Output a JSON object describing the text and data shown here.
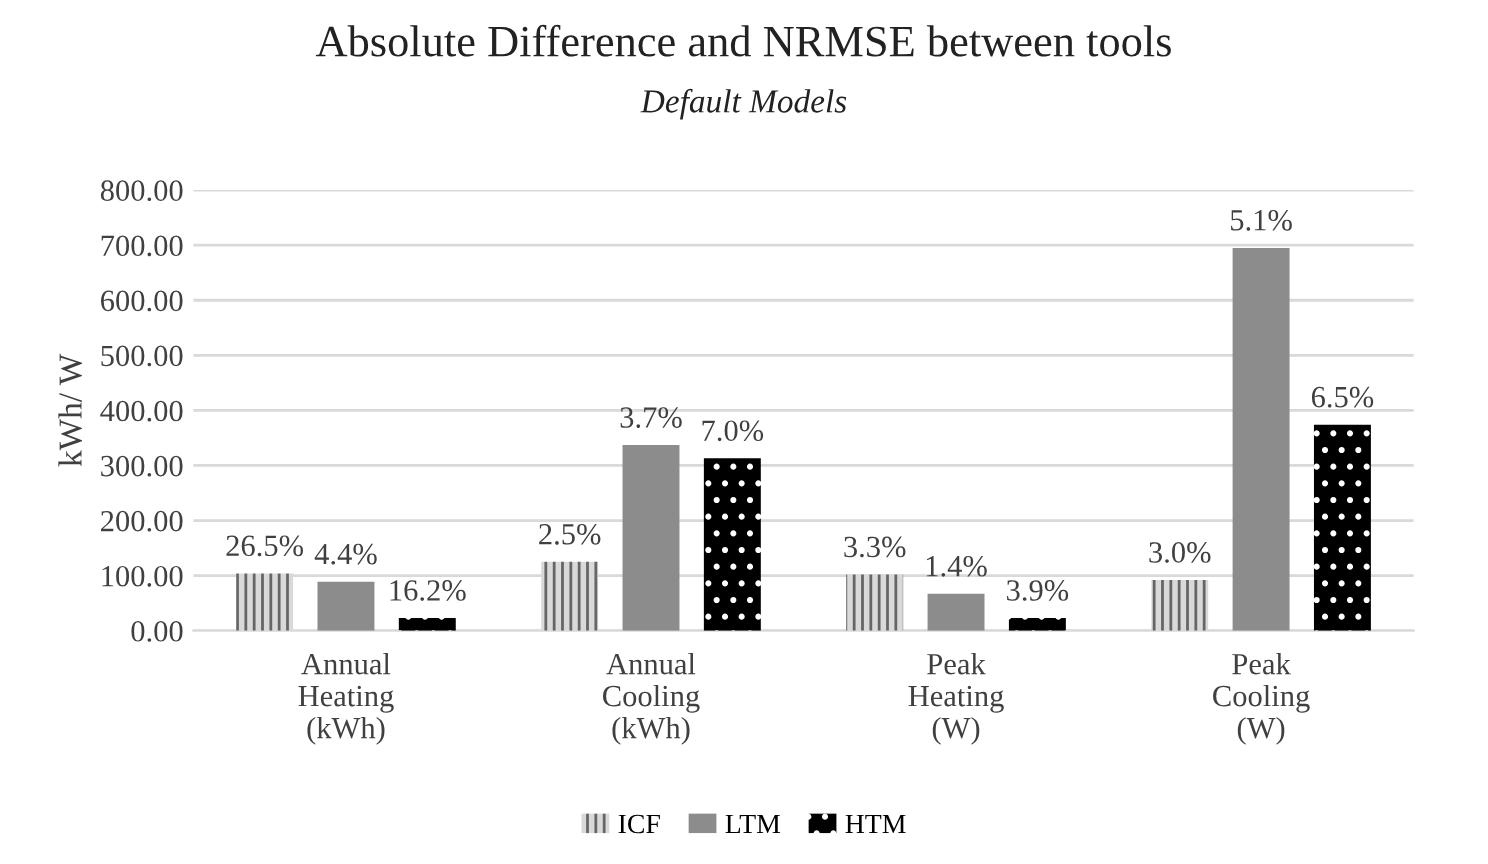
{
  "chart_data": {
    "type": "bar",
    "title": "Absolute Difference and NRMSE between tools",
    "subtitle": "Default Models",
    "ylabel": "kWh/ W",
    "categories": [
      "Annual\nHeating\n(kWh)",
      "Annual\nCooling\n(kWh)",
      "Peak\nHeating\n(W)",
      "Peak\nCooling\n(W)"
    ],
    "series": [
      {
        "name": "ICF",
        "color": "#d9d9d9",
        "values": [
          104,
          125,
          102,
          92
        ]
      },
      {
        "name": "LTM",
        "color": "#8c8c8c",
        "values": [
          89,
          337,
          67,
          695
        ]
      },
      {
        "name": "HTM",
        "color": "#000000",
        "values": [
          23,
          313,
          23,
          374
        ]
      }
    ],
    "annotations": [
      "26.5%",
      "4.4%",
      "16.2%",
      "2.5%",
      "3.7%",
      "7.0%",
      "3.3%",
      "1.4%",
      "3.9%",
      "3.0%",
      "5.1%",
      "6.5%"
    ],
    "ylim": [
      0,
      800
    ],
    "yticks": [
      {
        "value": 0,
        "label": "0.00"
      },
      {
        "value": 100,
        "label": "100.00"
      },
      {
        "value": 200,
        "label": "200.00"
      },
      {
        "value": 300,
        "label": "300.00"
      },
      {
        "value": 400,
        "label": "400.00"
      },
      {
        "value": 500,
        "label": "500.00"
      },
      {
        "value": 600,
        "label": "600.00"
      },
      {
        "value": 700,
        "label": "700.00"
      },
      {
        "value": 800,
        "label": "800.00"
      }
    ],
    "grid": "y",
    "legend": "bottom"
  }
}
